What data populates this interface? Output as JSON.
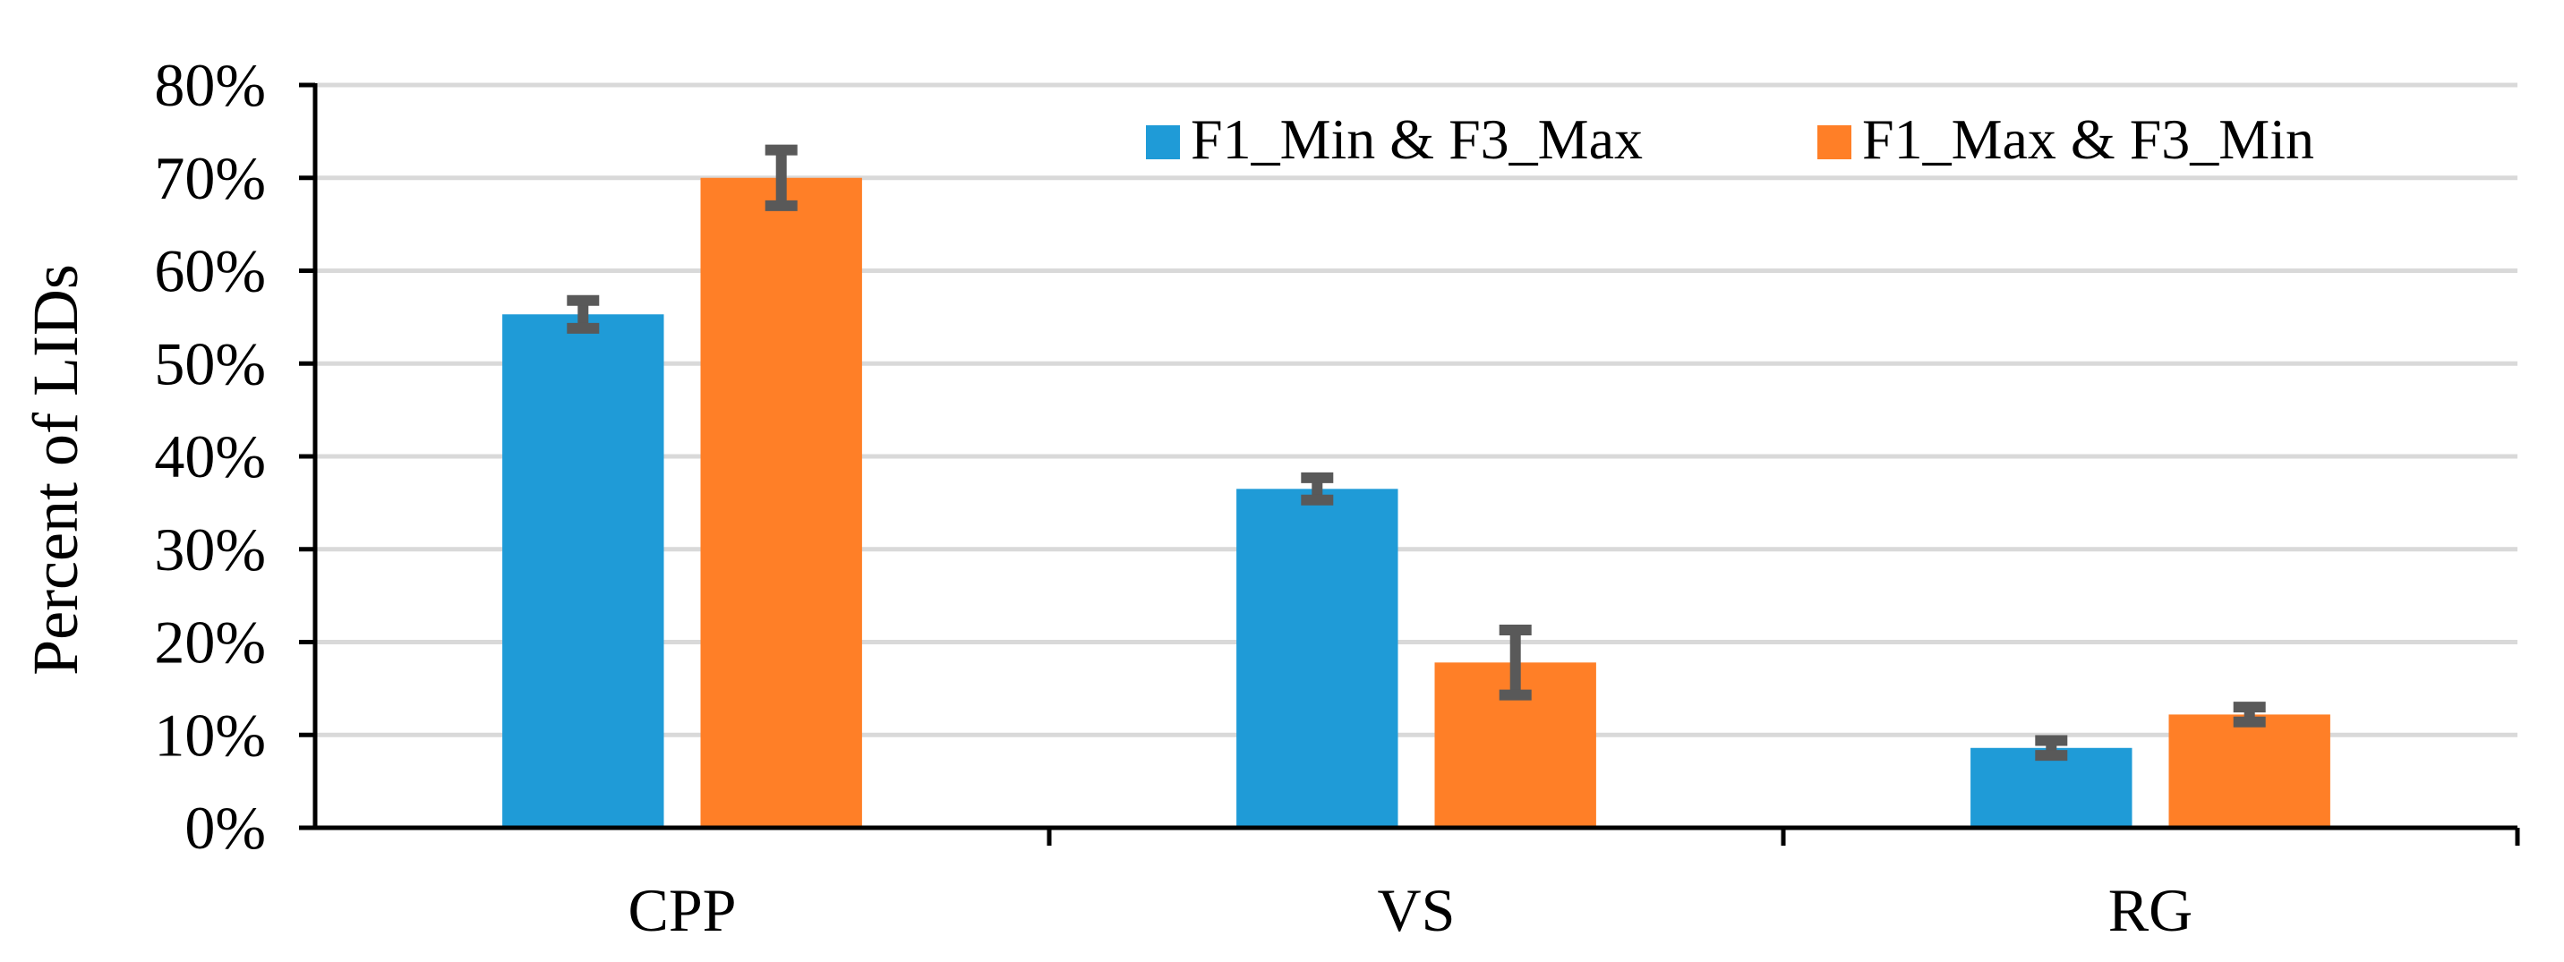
{
  "chart_data": {
    "type": "bar",
    "categories": [
      "CPP",
      "VS",
      "RG"
    ],
    "series": [
      {
        "name": "F1_Min & F3_Max",
        "color": "#1f9bd7",
        "values": [
          55.3,
          36.5,
          8.6
        ],
        "errors": [
          1.5,
          1.2,
          0.8
        ]
      },
      {
        "name": "F1_Max & F3_Min",
        "color": "#ff7f27",
        "values": [
          70.0,
          17.8,
          12.2
        ],
        "errors": [
          3.0,
          3.5,
          0.8
        ]
      }
    ],
    "ylabel": "Percent of LIDs",
    "ylim": [
      0,
      80
    ],
    "yticks": [
      "0%",
      "10%",
      "20%",
      "30%",
      "40%",
      "50%",
      "60%",
      "70%",
      "80%"
    ],
    "grid": true,
    "legend_position": "top-right",
    "error_bar_color": "#595959"
  }
}
